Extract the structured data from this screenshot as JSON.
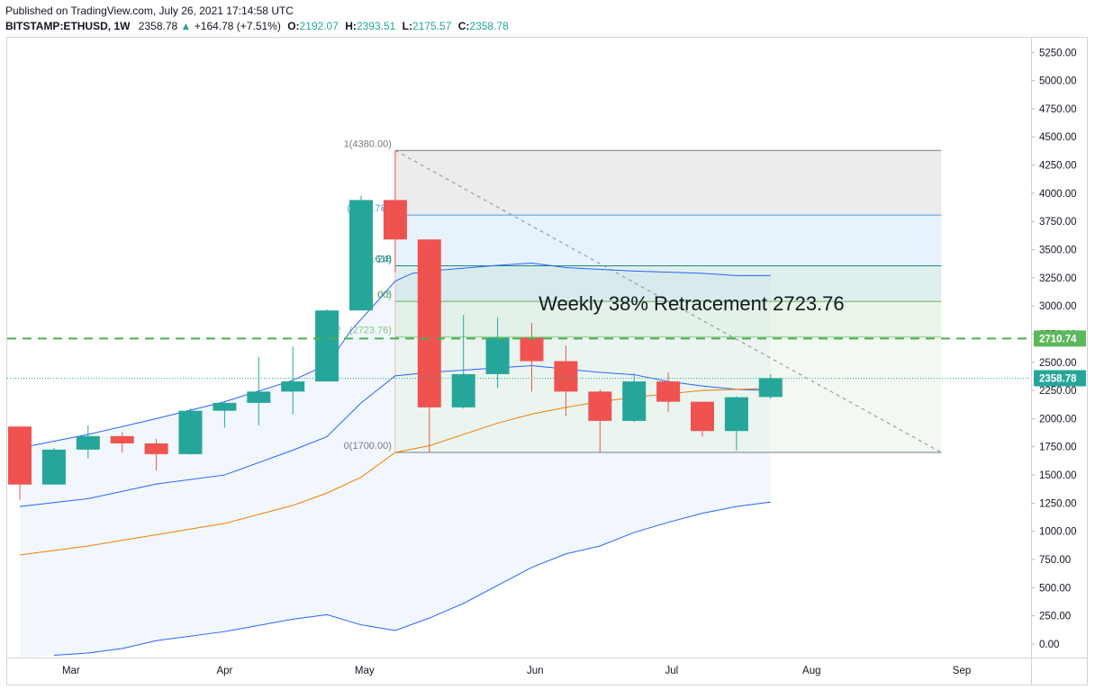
{
  "header": {
    "published": "Published on TradingView.com, July 26, 2021 17:14:58 UTC",
    "symbol": "BITSTAMP:ETHUSD, 1W",
    "last": "2358.78",
    "change_arrow": "▲",
    "change": "+164.78 (+7.51%)",
    "open_label": "O:",
    "open": "2192.07",
    "high_label": "H:",
    "high": "2393.51",
    "low_label": "L:",
    "low": "2175.57",
    "close_label": "C:",
    "close": "2358.78"
  },
  "colors": {
    "up": "#26a69a",
    "down": "#ef5350",
    "bb": "#2962ff",
    "bb_fill": "#e3f2fd",
    "ma": "#f57c00",
    "fib_top": "#d9d9d9",
    "fib_786": "#cfe6fb",
    "fib_618": "#bfe0dc",
    "fib_5": "#d6ecd4",
    "fib_382": "#e3f2e1",
    "dashed_level": "#4caf50",
    "price_line": "#26a69a"
  },
  "chart_data": {
    "type": "candlestick",
    "symbol": "BITSTAMP:ETHUSD",
    "interval": "1W",
    "y_axis": {
      "ticks": [
        0,
        250,
        500,
        750,
        1000,
        1250,
        1500,
        1750,
        2000,
        2250,
        2500,
        2750,
        3000,
        3250,
        3500,
        3750,
        4000,
        4250,
        4500,
        4750,
        5000,
        5250
      ],
      "tick_labels": [
        "0.00",
        "250.00",
        "500.00",
        "750.00",
        "1000.00",
        "1250.00",
        "1500.00",
        "1750.00",
        "2000.00",
        "2250.00",
        "2500.00",
        "2750.00",
        "3000.00",
        "3250.00",
        "3500.00",
        "3750.00",
        "4000.00",
        "4250.00",
        "4500.00",
        "4750.00",
        "5000.00",
        "5250.00"
      ],
      "range": [
        -120,
        5380
      ],
      "position": "right"
    },
    "x_axis": {
      "labels": [
        {
          "text": "Mar",
          "week": 1.5
        },
        {
          "text": "Apr",
          "week": 6.0
        },
        {
          "text": "May",
          "week": 10.1
        },
        {
          "text": "Jun",
          "week": 15.1
        },
        {
          "text": "Jul",
          "week": 19.1
        },
        {
          "text": "Aug",
          "week": 23.2
        },
        {
          "text": "Sep",
          "week": 27.6
        }
      ],
      "range": [
        0,
        30
      ]
    },
    "candles": [
      {
        "o": 1930,
        "h": 1930,
        "l": 1280,
        "c": 1415
      },
      {
        "o": 1415,
        "h": 1740,
        "l": 1415,
        "c": 1725
      },
      {
        "o": 1725,
        "h": 1940,
        "l": 1650,
        "c": 1845
      },
      {
        "o": 1845,
        "h": 1880,
        "l": 1700,
        "c": 1780
      },
      {
        "o": 1780,
        "h": 1820,
        "l": 1540,
        "c": 1685
      },
      {
        "o": 1685,
        "h": 2090,
        "l": 1680,
        "c": 2070
      },
      {
        "o": 2070,
        "h": 2150,
        "l": 1920,
        "c": 2140
      },
      {
        "o": 2140,
        "h": 2550,
        "l": 1940,
        "c": 2240
      },
      {
        "o": 2240,
        "h": 2640,
        "l": 2040,
        "c": 2330
      },
      {
        "o": 2330,
        "h": 2970,
        "l": 2330,
        "c": 2960
      },
      {
        "o": 2960,
        "h": 3980,
        "l": 2960,
        "c": 3940
      },
      {
        "o": 3940,
        "h": 4380,
        "l": 3300,
        "c": 3590
      },
      {
        "o": 3590,
        "h": 3590,
        "l": 1700,
        "c": 2100
      },
      {
        "o": 2100,
        "h": 2920,
        "l": 2090,
        "c": 2395
      },
      {
        "o": 2395,
        "h": 2900,
        "l": 2270,
        "c": 2720
      },
      {
        "o": 2720,
        "h": 2850,
        "l": 2240,
        "c": 2510
      },
      {
        "o": 2510,
        "h": 2650,
        "l": 2020,
        "c": 2240
      },
      {
        "o": 2240,
        "h": 2260,
        "l": 1700,
        "c": 1980
      },
      {
        "o": 1980,
        "h": 2400,
        "l": 1970,
        "c": 2330
      },
      {
        "o": 2330,
        "h": 2410,
        "l": 2060,
        "c": 2150
      },
      {
        "o": 2150,
        "h": 2150,
        "l": 1840,
        "c": 1890
      },
      {
        "o": 1890,
        "h": 2200,
        "l": 1720,
        "c": 2190
      },
      {
        "o": 2192.07,
        "h": 2393.51,
        "l": 2175.57,
        "c": 2358.78
      }
    ],
    "bollinger": {
      "upper": [
        {
          "w": 0,
          "v": 1740
        },
        {
          "w": 2,
          "v": 1860
        },
        {
          "w": 4,
          "v": 2000
        },
        {
          "w": 6,
          "v": 2150
        },
        {
          "w": 8,
          "v": 2340
        },
        {
          "w": 9,
          "v": 2480
        },
        {
          "w": 9.7,
          "v": 2780
        },
        {
          "w": 10.5,
          "v": 3050
        },
        {
          "w": 11,
          "v": 3220
        },
        {
          "w": 11.5,
          "v": 3290
        },
        {
          "w": 12.4,
          "v": 3320
        },
        {
          "w": 14,
          "v": 3360
        },
        {
          "w": 15,
          "v": 3380
        },
        {
          "w": 16,
          "v": 3340
        },
        {
          "w": 18,
          "v": 3310
        },
        {
          "w": 20,
          "v": 3290
        },
        {
          "w": 21,
          "v": 3270
        },
        {
          "w": 22,
          "v": 3270
        }
      ],
      "middle": [
        {
          "w": 0,
          "v": 1220
        },
        {
          "w": 2,
          "v": 1290
        },
        {
          "w": 4,
          "v": 1420
        },
        {
          "w": 6,
          "v": 1500
        },
        {
          "w": 8,
          "v": 1720
        },
        {
          "w": 9,
          "v": 1840
        },
        {
          "w": 10,
          "v": 2140
        },
        {
          "w": 11,
          "v": 2380
        },
        {
          "w": 12,
          "v": 2410
        },
        {
          "w": 13,
          "v": 2430
        },
        {
          "w": 14,
          "v": 2450
        },
        {
          "w": 15,
          "v": 2470
        },
        {
          "w": 16,
          "v": 2440
        },
        {
          "w": 17,
          "v": 2410
        },
        {
          "w": 18,
          "v": 2390
        },
        {
          "w": 19,
          "v": 2330
        },
        {
          "w": 20,
          "v": 2290
        },
        {
          "w": 21,
          "v": 2260
        },
        {
          "w": 22,
          "v": 2250
        }
      ],
      "lower": [
        {
          "w": 1,
          "v": -100
        },
        {
          "w": 2,
          "v": -80
        },
        {
          "w": 3,
          "v": -40
        },
        {
          "w": 4,
          "v": 30
        },
        {
          "w": 6,
          "v": 110
        },
        {
          "w": 8,
          "v": 220
        },
        {
          "w": 9,
          "v": 260
        },
        {
          "w": 10,
          "v": 170
        },
        {
          "w": 11,
          "v": 120
        },
        {
          "w": 12,
          "v": 230
        },
        {
          "w": 13,
          "v": 360
        },
        {
          "w": 14,
          "v": 520
        },
        {
          "w": 15,
          "v": 680
        },
        {
          "w": 16,
          "v": 800
        },
        {
          "w": 17,
          "v": 870
        },
        {
          "w": 18,
          "v": 990
        },
        {
          "w": 19,
          "v": 1080
        },
        {
          "w": 20,
          "v": 1160
        },
        {
          "w": 21,
          "v": 1220
        },
        {
          "w": 22,
          "v": 1260
        }
      ]
    },
    "moving_average": [
      {
        "w": 0,
        "v": 790
      },
      {
        "w": 2,
        "v": 870
      },
      {
        "w": 4,
        "v": 970
      },
      {
        "w": 6,
        "v": 1070
      },
      {
        "w": 8,
        "v": 1230
      },
      {
        "w": 9,
        "v": 1340
      },
      {
        "w": 10,
        "v": 1480
      },
      {
        "w": 11,
        "v": 1700
      },
      {
        "w": 12,
        "v": 1760
      },
      {
        "w": 13,
        "v": 1860
      },
      {
        "w": 14,
        "v": 1960
      },
      {
        "w": 15,
        "v": 2040
      },
      {
        "w": 16,
        "v": 2100
      },
      {
        "w": 17,
        "v": 2150
      },
      {
        "w": 18,
        "v": 2190
      },
      {
        "w": 19,
        "v": 2220
      },
      {
        "w": 20,
        "v": 2250
      },
      {
        "w": 21,
        "v": 2260
      },
      {
        "w": 22,
        "v": 2270
      }
    ],
    "fibonacci": {
      "from": {
        "week": 11.0,
        "price": 4380
      },
      "to": {
        "week": 27.0,
        "price": 1700
      },
      "levels": [
        {
          "ratio": 1,
          "price": 4380,
          "label": "1(4380.00)",
          "color": "#787b86"
        },
        {
          "ratio": 0.786,
          "price": 3806,
          "label": "0.786",
          "color": "#4a9ee0"
        },
        {
          "ratio": 0.618,
          "price": 3356,
          "label": "0.618",
          "color": "#1f8a80"
        },
        {
          "ratio": 0.5,
          "price": 3040,
          "label": "0.5",
          "color": "#6aaf5f"
        },
        {
          "ratio": 0.382,
          "price": 2724,
          "label": "(2723.76)",
          "color": "#8cc585"
        },
        {
          "ratio": 0,
          "price": 1700,
          "label": "0(1700.00)",
          "color": "#787b86"
        }
      ],
      "partial_labels": [
        {
          "text": "(",
          "price": 3806,
          "color": "#4a9ee0"
        },
        {
          "text": "4",
          "price": 3806,
          "color": "#4a9ee0"
        },
        {
          "text": "24)",
          "price": 3356,
          "color": "#1f8a80"
        },
        {
          "text": "00)",
          "price": 3040,
          "color": "#6aaf5f"
        },
        {
          "text": "2",
          "price": 2724,
          "color": "#8cc585"
        }
      ]
    },
    "annotation": {
      "text": "Weekly 38% Retracement 2723.76",
      "price": 2960,
      "week": 15.2
    },
    "horizontal_level": {
      "price": 2710.74,
      "label": "2710.74",
      "style": "dashed"
    },
    "last_price": {
      "price": 2358.78,
      "label": "2358.78",
      "style": "dotted"
    },
    "grid": false,
    "legend": "none"
  }
}
